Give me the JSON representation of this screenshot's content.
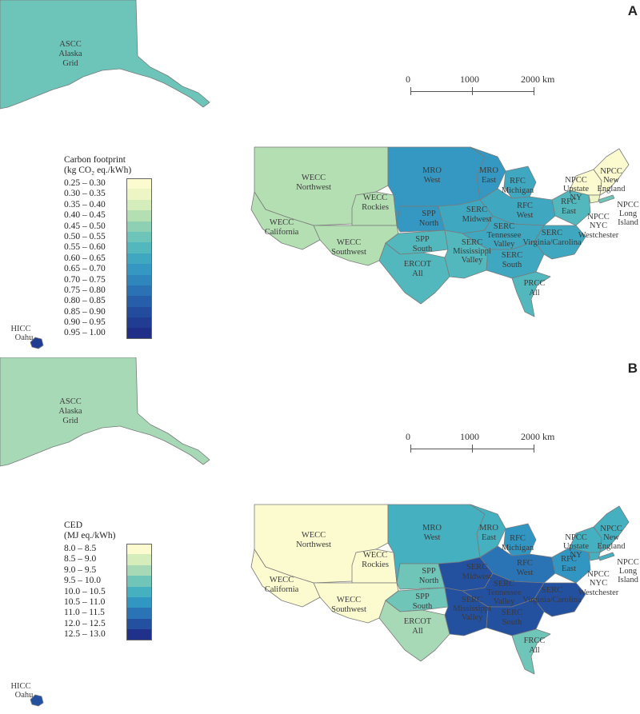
{
  "panels": [
    {
      "letter": "A",
      "legend": {
        "title_line1": "Carbon footprint",
        "title_line2": "(kg CO₂ eq./kWh)",
        "bins": [
          {
            "label": "0.25 – 0.30",
            "color": "#fbfbcf"
          },
          {
            "label": "0.30 – 0.35",
            "color": "#ecf5c3"
          },
          {
            "label": "0.35 – 0.40",
            "color": "#d5edbb"
          },
          {
            "label": "0.40 – 0.45",
            "color": "#b4dfb3"
          },
          {
            "label": "0.45 – 0.50",
            "color": "#8ed0b3"
          },
          {
            "label": "0.50 – 0.55",
            "color": "#6dc4b9"
          },
          {
            "label": "0.55 – 0.60",
            "color": "#52b8bd"
          },
          {
            "label": "0.60 – 0.65",
            "color": "#3fa8c0"
          },
          {
            "label": "0.65 – 0.70",
            "color": "#3598c2"
          },
          {
            "label": "0.70 – 0.75",
            "color": "#2f86bd"
          },
          {
            "label": "0.75 – 0.80",
            "color": "#2a72b4"
          },
          {
            "label": "0.80 – 0.85",
            "color": "#265ea9"
          },
          {
            "label": "0.85 – 0.90",
            "color": "#234c9e"
          },
          {
            "label": "0.90 – 0.95",
            "color": "#213c93"
          },
          {
            "label": "0.95 – 1.00",
            "color": "#1f2f87"
          }
        ]
      },
      "region_colors": {
        "alaska": "#6dc4b9",
        "hawaii": "#213c93",
        "wecc_nw": "#b4dfb3",
        "wecc_ca": "#b4dfb3",
        "wecc_rockies": "#b4dfb3",
        "wecc_sw": "#b4dfb3",
        "mro_west": "#3598c2",
        "mro_east": "#3598c2",
        "spp_north": "#3598c2",
        "spp_south": "#52b8bd",
        "ercot": "#52b8bd",
        "rfc_mich": "#3fa8c0",
        "rfc_west": "#3fa8c0",
        "rfc_east": "#52b8bd",
        "serc_midwest": "#3fa8c0",
        "serc_tn": "#3fa8c0",
        "serc_miss": "#52b8bd",
        "serc_south": "#3fa8c0",
        "serc_va": "#3fa8c0",
        "frcc": "#52b8bd",
        "npcc_upstate": "#fbfbcf",
        "npcc_ne": "#fbfbcf",
        "npcc_nyc": "#ecf5c3",
        "npcc_li": "#6dc4b9"
      }
    },
    {
      "letter": "B",
      "legend": {
        "title_line1": "CED",
        "title_line2": "(MJ eq./kWh)",
        "bins": [
          {
            "label": "8.0 – 8.5",
            "color": "#fbfbcf"
          },
          {
            "label": "8.5 – 9.0",
            "color": "#d5edbb"
          },
          {
            "label": "9.0 – 9.5",
            "color": "#a7d9b6"
          },
          {
            "label": "9.5 – 10.0",
            "color": "#70c5b9"
          },
          {
            "label": "10.0 – 10.5",
            "color": "#45b0c0"
          },
          {
            "label": "10.5 – 11.0",
            "color": "#3296c2"
          },
          {
            "label": "11.0 – 11.5",
            "color": "#2a74b6"
          },
          {
            "label": "12.0 – 12.5",
            "color": "#2450a0"
          },
          {
            "label": "12.5 – 13.0",
            "color": "#1f318a"
          }
        ]
      },
      "region_colors": {
        "alaska": "#a7d9b6",
        "hawaii": "#2450a0",
        "wecc_nw": "#fbfbcf",
        "wecc_ca": "#fbfbcf",
        "wecc_rockies": "#fbfbcf",
        "wecc_sw": "#fbfbcf",
        "mro_west": "#45b0c0",
        "mro_east": "#45b0c0",
        "spp_north": "#70c5b9",
        "spp_south": "#70c5b9",
        "ercot": "#a7d9b6",
        "rfc_mich": "#3296c2",
        "rfc_west": "#2a74b6",
        "rfc_east": "#3296c2",
        "serc_midwest": "#2450a0",
        "serc_tn": "#2450a0",
        "serc_miss": "#2450a0",
        "serc_south": "#2450a0",
        "serc_va": "#2450a0",
        "frcc": "#70c5b9",
        "npcc_upstate": "#45b0c0",
        "npcc_ne": "#45b0c0",
        "npcc_nyc": "#45b0c0",
        "npcc_li": "#45b0c0"
      }
    }
  ],
  "scale": {
    "t0": "0",
    "t1": "1000",
    "t2": "2000 km"
  },
  "labels": {
    "ascc": "ASCC",
    "alaska": "Alaska",
    "grid": "Grid",
    "hicc": "HICC",
    "oahu": "Oahu",
    "wecc": "WECC",
    "northwest": "Northwest",
    "rockies": "Rockies",
    "california": "California",
    "southwest": "Southwest",
    "mro": "MRO",
    "west": "West",
    "east": "East",
    "spp": "SPP",
    "north": "North",
    "south": "South",
    "ercot": "ERCOT",
    "all": "All",
    "rfc": "RFC",
    "michigan": "Michigan",
    "serc": "SERC",
    "midwest": "Midwest",
    "tennessee": "Tennessee",
    "valley": "Valley",
    "mississippi": "Mississippi",
    "virginia_carolina": "Virginia/Carolina",
    "prcc": "PRCC",
    "frcc": "FRCC",
    "npcc": "NPCC",
    "upstate": "Upstate",
    "ny": "NY",
    "new": "New",
    "england": "England",
    "nyc": "NYC",
    "westchester": "Westchester",
    "long": "Long",
    "island": "Island"
  }
}
